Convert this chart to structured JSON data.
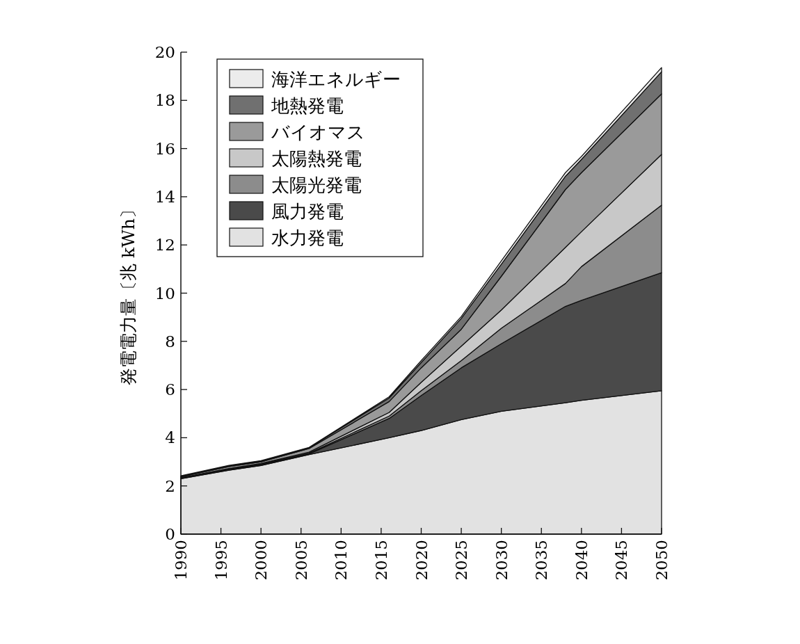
{
  "chart_data": {
    "type": "area",
    "stacked": true,
    "ylabel": "発電電力量〔兆 kWh〕",
    "x": [
      1990,
      1996,
      2000,
      2006,
      2016,
      2020,
      2025,
      2030,
      2038,
      2040,
      2050
    ],
    "series": [
      {
        "name": "水力発電",
        "color": "#e2e2e2",
        "values": [
          2.3,
          2.65,
          2.85,
          3.3,
          4.0,
          4.3,
          4.75,
          5.1,
          5.45,
          5.55,
          5.95
        ]
      },
      {
        "name": "風力発電",
        "color": "#4a4a4a",
        "values": [
          0.02,
          0.02,
          0.02,
          0.03,
          0.8,
          1.45,
          2.15,
          2.8,
          4.0,
          4.15,
          4.9
        ]
      },
      {
        "name": "太陽光発電",
        "color": "#8c8c8c",
        "values": [
          0.01,
          0.03,
          0.03,
          0.03,
          0.1,
          0.2,
          0.3,
          0.64,
          0.95,
          1.4,
          2.8
        ]
      },
      {
        "name": "太陽熱発電",
        "color": "#c8c8c8",
        "values": [
          0.01,
          0.02,
          0.03,
          0.04,
          0.15,
          0.35,
          0.6,
          0.76,
          1.5,
          1.45,
          2.11
        ]
      },
      {
        "name": "バイオマス",
        "color": "#9a9a9a",
        "values": [
          0.04,
          0.08,
          0.07,
          0.15,
          0.45,
          0.6,
          0.7,
          1.4,
          2.4,
          2.45,
          2.51
        ]
      },
      {
        "name": "地熱発電",
        "color": "#707070",
        "values": [
          0.02,
          0.03,
          0.03,
          0.03,
          0.15,
          0.22,
          0.45,
          0.5,
          0.55,
          0.55,
          0.92
        ]
      },
      {
        "name": "海洋エネルギー",
        "color": "#ececec",
        "values": [
          0.02,
          0.02,
          0.02,
          0.02,
          0.05,
          0.08,
          0.08,
          0.14,
          0.15,
          0.12,
          0.17
        ]
      }
    ],
    "xlim": [
      1990,
      2050
    ],
    "xticks": [
      1990,
      1995,
      2000,
      2005,
      2010,
      2015,
      2020,
      2025,
      2030,
      2035,
      2040,
      2045,
      2050
    ],
    "ylim": [
      0,
      20
    ],
    "yticks": [
      0,
      2,
      4,
      6,
      8,
      10,
      12,
      14,
      16,
      18,
      20
    ],
    "legend": "top left"
  }
}
